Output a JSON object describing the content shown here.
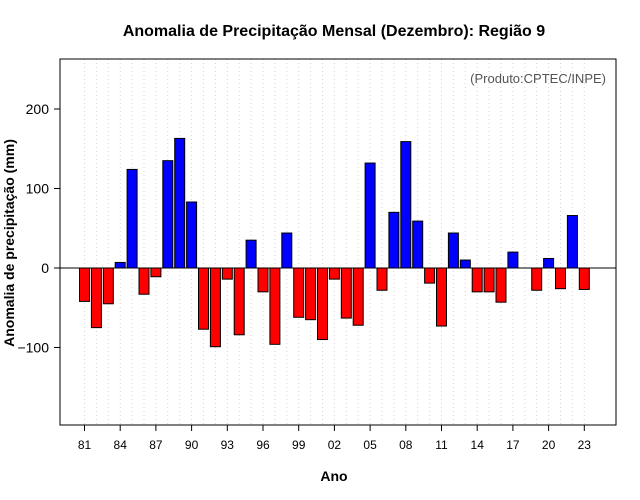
{
  "chart_data": {
    "type": "bar",
    "title": "Anomalia de Precipitação Mensal (Dezembro): Região 9",
    "xlabel": "Ano",
    "ylabel": "Anomalia de precipitação (mm)",
    "credit": "(Produto:CPTEC/INPE)",
    "ylim": [
      -200,
      265
    ],
    "yticks": [
      -100,
      0,
      100,
      200
    ],
    "grid": "vertical-dotted",
    "positive_color": "#0000ff",
    "negative_color": "#ff0000",
    "x": [
      1981,
      1982,
      1983,
      1984,
      1985,
      1986,
      1987,
      1988,
      1989,
      1990,
      1991,
      1992,
      1993,
      1994,
      1995,
      1996,
      1997,
      1998,
      1999,
      2000,
      2001,
      2002,
      2003,
      2004,
      2005,
      2006,
      2007,
      2008,
      2009,
      2010,
      2011,
      2012,
      2013,
      2014,
      2015,
      2016,
      2017,
      2018,
      2019,
      2020,
      2021,
      2022,
      2023
    ],
    "values": [
      -42,
      -75,
      -45,
      7,
      124,
      -33,
      -11,
      135,
      163,
      83,
      -77,
      -99,
      -14,
      -84,
      35,
      -30,
      -96,
      44,
      -62,
      -65,
      -90,
      -14,
      -63,
      -72,
      132,
      -28,
      70,
      159,
      59,
      -19,
      -73,
      44,
      10,
      -30,
      -30,
      -43,
      20,
      0,
      -28,
      12,
      -26,
      66,
      -27
    ],
    "tick_labels": [
      "81",
      "84",
      "87",
      "90",
      "93",
      "96",
      "99",
      "02",
      "05",
      "08",
      "11",
      "14",
      "17",
      "20",
      "23"
    ]
  }
}
